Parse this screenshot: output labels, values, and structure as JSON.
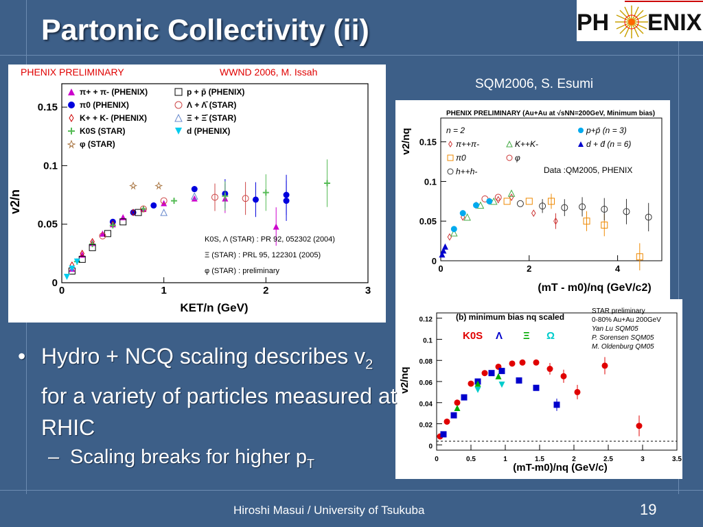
{
  "slide": {
    "title": "Partonic Collectivity (ii)",
    "page_number": "19",
    "footer": "Hiroshi Masui / University of Tsukuba",
    "logo_text": "PH ENIX",
    "sqm_label": "SQM2006, S. Esumi"
  },
  "bullets": {
    "main_pre": "Hydro + NCQ scaling describes v",
    "main_sub": "2",
    "main_post": " for a variety of particles measured at RHIC",
    "sub_pre": "Scaling breaks for higher p",
    "sub_sub": "T"
  },
  "plot1": {
    "header_left": "PHENIX PRELIMINARY",
    "header_right": "WWND 2006, M. Issah",
    "ylabel": "v2/n",
    "xlabel": "KET/n (GeV)",
    "yticks": [
      "0",
      "0.05",
      "0.1",
      "0.15"
    ],
    "xticks": [
      "0",
      "1",
      "2",
      "3"
    ],
    "legend": [
      "π+ + π- (PHENIX)",
      "π0 (PHENIX)",
      "K+ + K- (PHENIX)",
      "K0S (STAR)",
      "φ (STAR)",
      "p + p̄ (PHENIX)",
      "Λ + Λ̄ (STAR)",
      "Ξ + Ξ̄ (STAR)",
      "d (PHENIX)"
    ],
    "refs": [
      "K0S, Λ (STAR) : PR 92, 052302 (2004)",
      "Ξ (STAR) : PRL 95, 122301 (2005)",
      "φ (STAR) : preliminary"
    ]
  },
  "plot2": {
    "header": "PHENIX PRELIMINARY (Au+Au at √sNN=200GeV, Minimum bias)",
    "ylabel": "v2/nq",
    "xlabel": "(mT - m0)/nq (GeV/c2)",
    "yticks": [
      "0",
      "0.05",
      "0.1",
      "0.15"
    ],
    "xticks": [
      "0",
      "2",
      "4"
    ],
    "note": "Data :QM2005, PHENIX",
    "legend": [
      "n = 2",
      "π++π-",
      "π0",
      "h++h-",
      "K++K-",
      "φ",
      "p+p̄ (n = 3)",
      "d + d̄ (n = 6)"
    ]
  },
  "plot3": {
    "header": "(b) minimum bias nq scaled",
    "ylabel": "v2/nq",
    "xlabel": "(mT-m0)/nq (GeV/c)",
    "yticks": [
      "0",
      "0.02",
      "0.04",
      "0.06",
      "0.08",
      "0.1",
      "0.12"
    ],
    "xticks": [
      "0",
      "0.5",
      "1",
      "1.5",
      "2",
      "2.5",
      "3",
      "3.5"
    ],
    "species": [
      "K0S",
      "Λ",
      "Ξ",
      "Ω"
    ],
    "credits": [
      "STAR preliminary",
      "0-80% Au+Au 200GeV",
      "Yan Lu SQM05",
      "P. Sorensen SQM05",
      "M. Oldenburg QM05"
    ]
  },
  "chart_data": [
    {
      "type": "scatter",
      "title": "PHENIX PRELIMINARY",
      "xlabel": "KET/n (GeV)",
      "ylabel": "v2/n",
      "xlim": [
        0,
        3
      ],
      "ylim": [
        0,
        0.17
      ],
      "series": [
        {
          "name": "π+ + π- (PHENIX)",
          "color": "#cc00cc",
          "x": [
            0.1,
            0.2,
            0.3,
            0.4,
            0.5,
            0.6,
            0.8,
            1.0,
            1.3,
            1.6,
            2.1
          ],
          "y": [
            0.012,
            0.024,
            0.034,
            0.042,
            0.05,
            0.056,
            0.063,
            0.068,
            0.072,
            0.072,
            0.048
          ]
        },
        {
          "name": "π0 (PHENIX)",
          "color": "#0000dd",
          "x": [
            0.5,
            0.7,
            0.9,
            1.3,
            1.6,
            1.9,
            2.2,
            2.2
          ],
          "y": [
            0.052,
            0.06,
            0.066,
            0.08,
            0.076,
            0.071,
            0.07,
            0.075
          ]
        },
        {
          "name": "K+ + K- (PHENIX)",
          "color": "#cc0000",
          "x": [
            0.1,
            0.2,
            0.3,
            0.5,
            0.7
          ],
          "y": [
            0.015,
            0.025,
            0.035,
            0.05,
            0.06
          ]
        },
        {
          "name": "K0S (STAR)",
          "color": "#55bb55",
          "x": [
            0.15,
            0.3,
            0.5,
            0.8,
            1.1,
            1.6,
            2.0,
            2.6
          ],
          "y": [
            0.018,
            0.033,
            0.049,
            0.063,
            0.07,
            0.074,
            0.077,
            0.085
          ]
        },
        {
          "name": "φ (STAR)",
          "color": "#aa7744",
          "x": [
            0.7,
            0.95
          ],
          "y": [
            0.083,
            0.083
          ]
        },
        {
          "name": "p + p̄ (PHENIX)",
          "color": "#000000",
          "x": [
            0.1,
            0.2,
            0.3,
            0.45,
            0.6,
            0.75
          ],
          "y": [
            0.01,
            0.02,
            0.03,
            0.042,
            0.052,
            0.06
          ]
        },
        {
          "name": "Λ + Λ̄ (STAR)",
          "color": "#cc4444",
          "x": [
            0.4,
            0.8,
            1.0,
            1.5,
            1.8
          ],
          "y": [
            0.04,
            0.063,
            0.07,
            0.073,
            0.072
          ]
        },
        {
          "name": "Ξ + Ξ̄ (STAR)",
          "color": "#6688cc",
          "x": [
            1.0,
            1.3
          ],
          "y": [
            0.06,
            0.074
          ]
        },
        {
          "name": "d (PHENIX)",
          "color": "#00ccee",
          "x": [
            0.05,
            0.1,
            0.15
          ],
          "y": [
            0.005,
            0.012,
            0.018
          ]
        }
      ]
    },
    {
      "type": "scatter",
      "title": "PHENIX PRELIMINARY (Au+Au at √sNN=200GeV, Minimum bias)",
      "xlabel": "(mT - m0)/nq (GeV/c2)",
      "ylabel": "v2/nq",
      "xlim": [
        0,
        5
      ],
      "ylim": [
        0,
        0.18
      ],
      "series": [
        {
          "name": "π++π-",
          "color": "#cc3333",
          "x": [
            0.2,
            0.5,
            0.8,
            1.1,
            1.3,
            1.6,
            2.1,
            2.6
          ],
          "y": [
            0.03,
            0.055,
            0.07,
            0.075,
            0.077,
            0.08,
            0.06,
            0.05
          ]
        },
        {
          "name": "π0",
          "color": "#ee8800",
          "x": [
            1.5,
            2.0,
            2.5,
            3.3,
            3.7,
            4.5
          ],
          "y": [
            0.075,
            0.075,
            0.075,
            0.05,
            0.045,
            0.005
          ]
        },
        {
          "name": "h++h-",
          "color": "#333333",
          "x": [
            1.8,
            2.3,
            2.8,
            3.2,
            3.7,
            4.2,
            4.7
          ],
          "y": [
            0.072,
            0.069,
            0.067,
            0.068,
            0.065,
            0.062,
            0.055
          ]
        },
        {
          "name": "K++K-",
          "color": "#44aa44",
          "x": [
            0.3,
            0.6,
            0.9,
            1.2,
            1.6
          ],
          "y": [
            0.035,
            0.055,
            0.07,
            0.075,
            0.085
          ]
        },
        {
          "name": "φ",
          "color": "#cc3333",
          "x": [
            1.0,
            1.3
          ],
          "y": [
            0.078,
            0.08
          ]
        },
        {
          "name": "p+p̄ (n = 3)",
          "color": "#00aaee",
          "x": [
            0.3,
            0.5,
            0.8,
            1.1
          ],
          "y": [
            0.04,
            0.06,
            0.07,
            0.075
          ]
        },
        {
          "name": "d + d̄ (n = 6)",
          "color": "#0000cc",
          "x": [
            0.03,
            0.06,
            0.1
          ],
          "y": [
            0.008,
            0.013,
            0.018
          ]
        }
      ]
    },
    {
      "type": "scatter",
      "title": "(b) minimum bias nq scaled",
      "xlabel": "(mT-m0)/nq (GeV/c)",
      "ylabel": "v2/nq",
      "xlim": [
        0,
        3.5
      ],
      "ylim": [
        -0.005,
        0.125
      ],
      "series": [
        {
          "name": "K0S",
          "color": "#e00000",
          "x": [
            0.05,
            0.15,
            0.3,
            0.5,
            0.7,
            0.9,
            1.1,
            1.25,
            1.45,
            1.65,
            1.85,
            2.05,
            2.45,
            2.95
          ],
          "y": [
            0.008,
            0.022,
            0.04,
            0.058,
            0.068,
            0.074,
            0.077,
            0.078,
            0.078,
            0.072,
            0.065,
            0.05,
            0.075,
            0.018
          ]
        },
        {
          "name": "Λ",
          "color": "#0000cc",
          "x": [
            0.1,
            0.25,
            0.4,
            0.6,
            0.8,
            0.95,
            1.2,
            1.45,
            1.75
          ],
          "y": [
            0.01,
            0.028,
            0.045,
            0.06,
            0.068,
            0.07,
            0.061,
            0.054,
            0.038
          ]
        },
        {
          "name": "Ξ",
          "color": "#00aa00",
          "x": [
            0.3,
            0.6,
            0.9
          ],
          "y": [
            0.035,
            0.058,
            0.065
          ]
        },
        {
          "name": "Ω",
          "color": "#00cccc",
          "x": [
            0.6,
            0.95
          ],
          "y": [
            0.052,
            0.057
          ]
        }
      ]
    }
  ]
}
